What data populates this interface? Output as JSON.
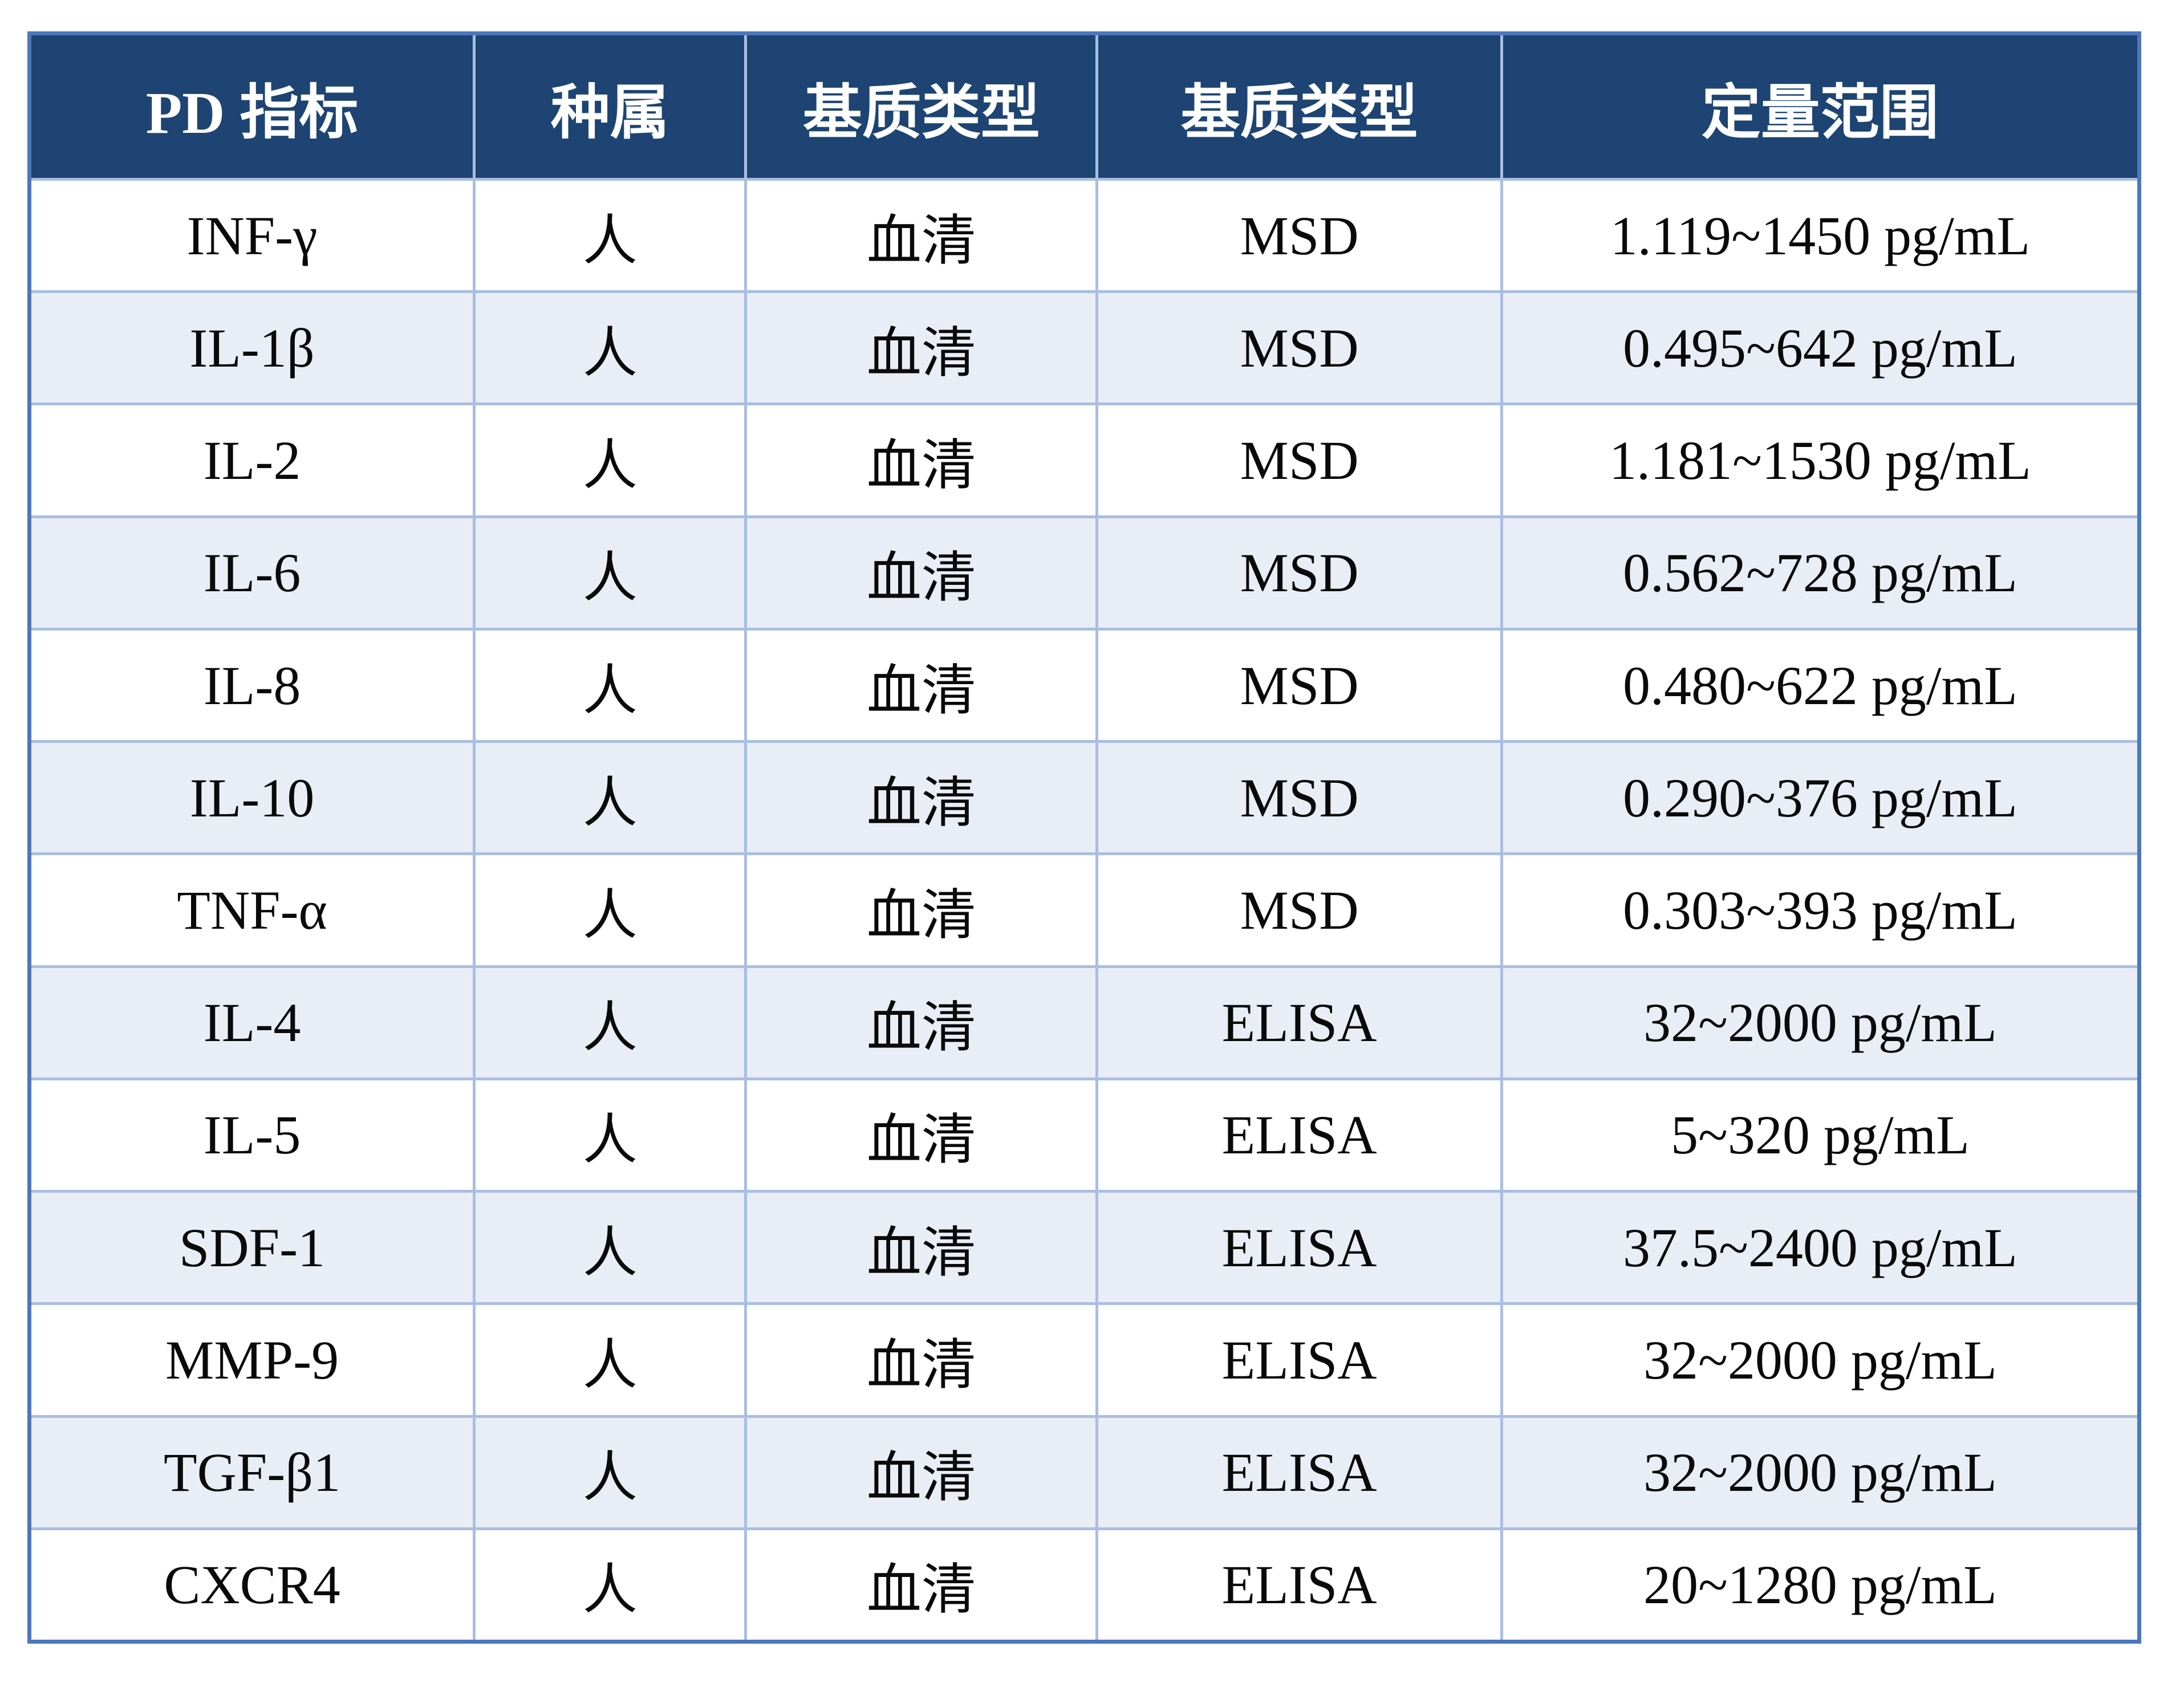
{
  "theme": {
    "page_bg": "#FFFFFF",
    "header_bg": "#1D4472",
    "header_text": "#FFFFFF",
    "outer_border": "#4C77BD",
    "grid_line": "#A9BEE2",
    "row_bg": "#FFFFFF",
    "row_alt_bg": "#E9EDF6",
    "body_text": "#0A0A0A"
  },
  "table": {
    "headers": [
      "PD 指标",
      "种属",
      "基质类型",
      "基质类型",
      "定量范围"
    ],
    "rows": [
      [
        "INF-γ",
        "人",
        "血清",
        "MSD",
        "1.119~1450 pg/mL"
      ],
      [
        "IL-1β",
        "人",
        "血清",
        "MSD",
        "0.495~642 pg/mL"
      ],
      [
        "IL-2",
        "人",
        "血清",
        "MSD",
        "1.181~1530 pg/mL"
      ],
      [
        "IL-6",
        "人",
        "血清",
        "MSD",
        "0.562~728 pg/mL"
      ],
      [
        "IL-8",
        "人",
        "血清",
        "MSD",
        "0.480~622 pg/mL"
      ],
      [
        "IL-10",
        "人",
        "血清",
        "MSD",
        "0.290~376 pg/mL"
      ],
      [
        "TNF-α",
        "人",
        "血清",
        "MSD",
        "0.303~393 pg/mL"
      ],
      [
        "IL-4",
        "人",
        "血清",
        "ELISA",
        "32~2000 pg/mL"
      ],
      [
        "IL-5",
        "人",
        "血清",
        "ELISA",
        "5~320 pg/mL"
      ],
      [
        "SDF-1",
        "人",
        "血清",
        "ELISA",
        "37.5~2400 pg/mL"
      ],
      [
        "MMP-9",
        "人",
        "血清",
        "ELISA",
        "32~2000 pg/mL"
      ],
      [
        "TGF-β1",
        "人",
        "血清",
        "ELISA",
        "32~2000 pg/mL"
      ],
      [
        "CXCR4",
        "人",
        "血清",
        "ELISA",
        "20~1280 pg/mL"
      ]
    ]
  }
}
